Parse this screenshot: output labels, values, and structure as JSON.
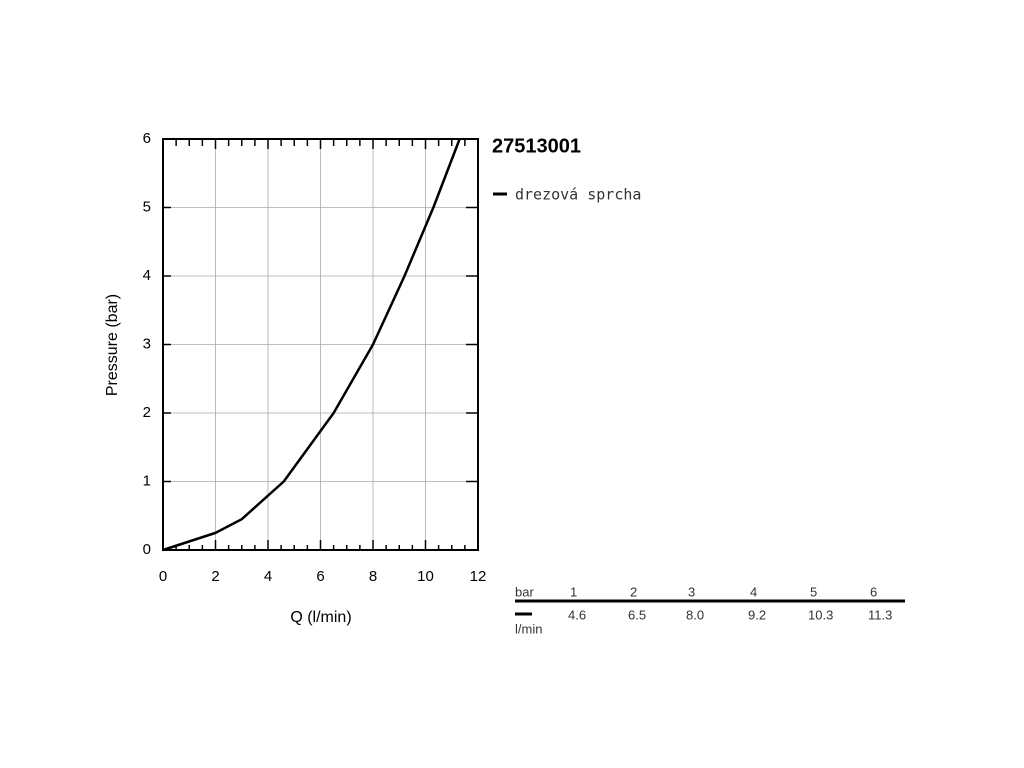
{
  "chart_data": {
    "type": "line",
    "title": "27513001",
    "xlabel": "Q (l/min)",
    "ylabel": "Pressure (bar)",
    "xlim": [
      0,
      12
    ],
    "xticks": [
      0,
      2,
      4,
      6,
      8,
      10,
      12
    ],
    "ylim": [
      0,
      6
    ],
    "yticks": [
      0,
      1,
      2,
      3,
      4,
      5,
      6
    ],
    "grid": true,
    "series": [
      {
        "name": "drezová sprcha",
        "color": "#000000",
        "x": [
          0,
          2,
          3,
          4.6,
          6.5,
          8.0,
          9.2,
          10.3,
          11.3
        ],
        "values": [
          0,
          0.25,
          0.45,
          1,
          2,
          3,
          4,
          5,
          6
        ]
      }
    ]
  },
  "table": {
    "row_label": "bar",
    "unit_label": "l/min",
    "pressures": [
      1,
      2,
      3,
      4,
      5,
      6
    ],
    "flows": [
      "4.6",
      "6.5",
      "8.0",
      "9.2",
      "10.3",
      "11.3"
    ]
  }
}
